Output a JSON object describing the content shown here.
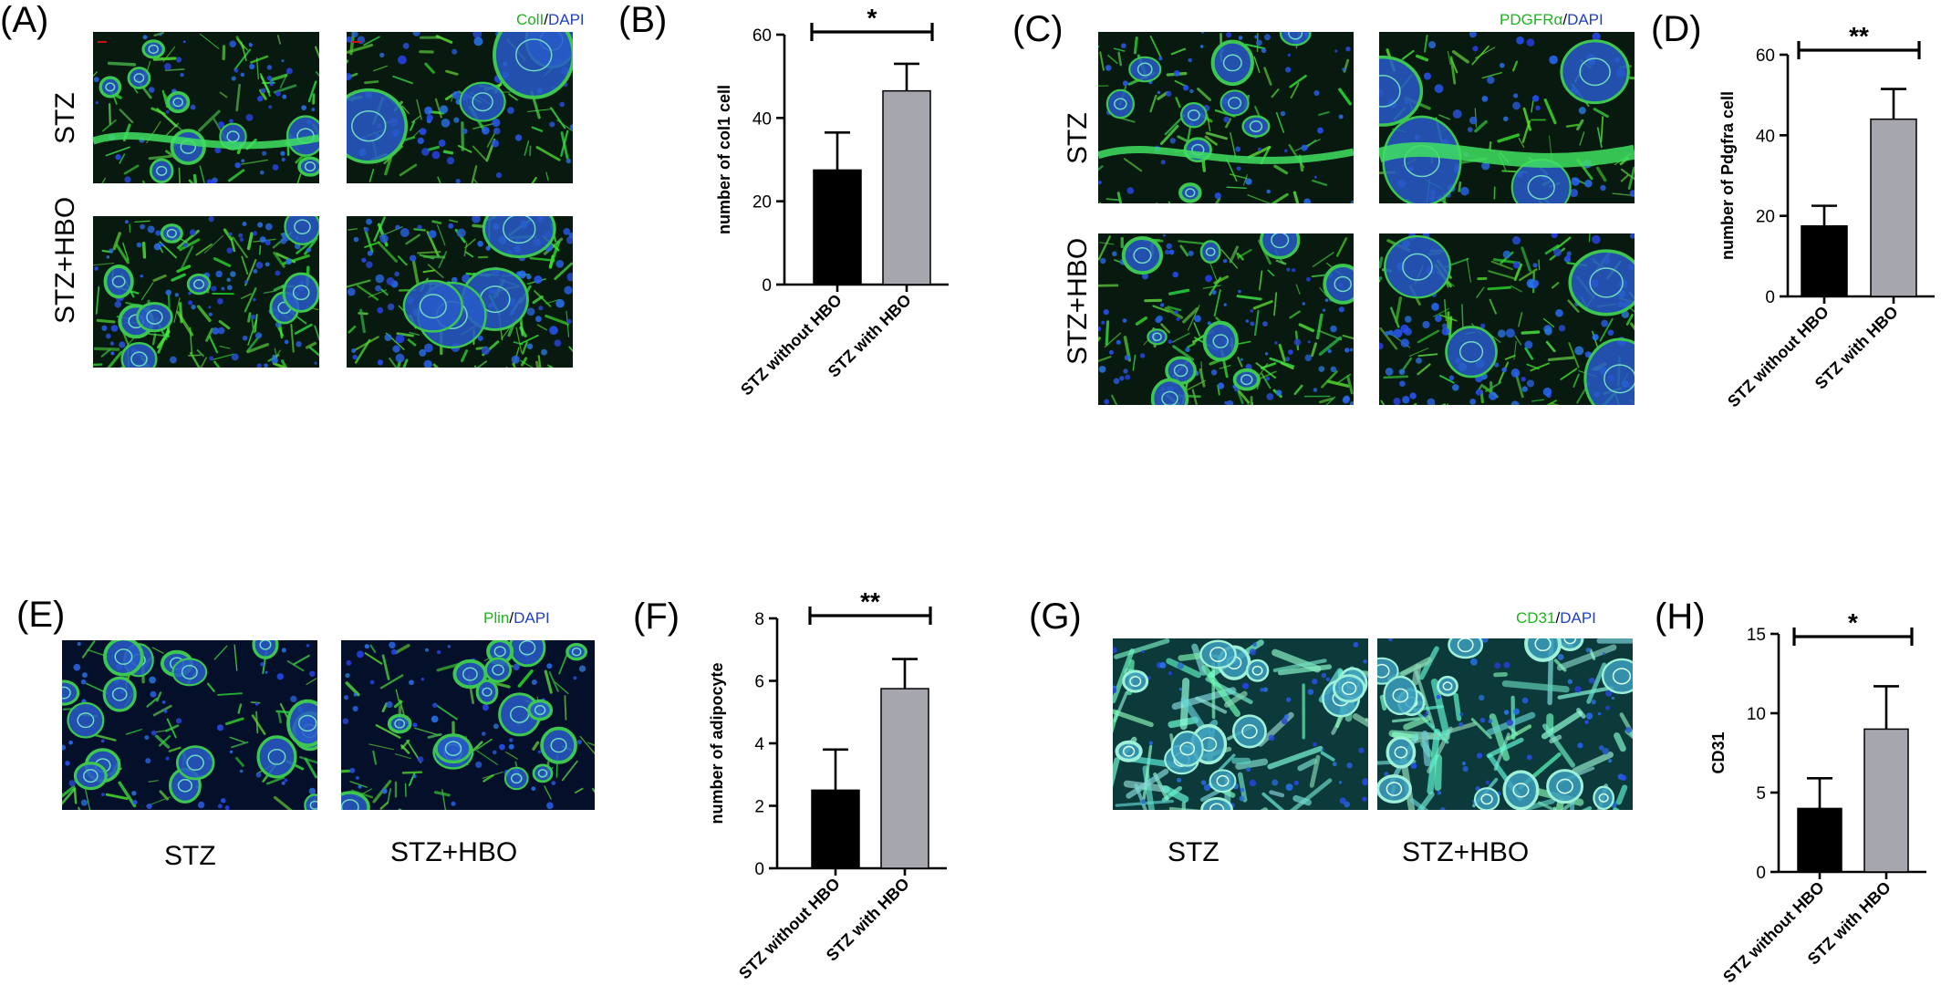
{
  "figure": {
    "panels": {
      "A": {
        "label": "(A)",
        "stain": {
          "green": "ColI",
          "sep": "/",
          "blue": "DAPI"
        },
        "rows": [
          "STZ",
          "STZ+HBO"
        ]
      },
      "B": {
        "label": "(B)"
      },
      "C": {
        "label": "(C)",
        "stain": {
          "green": "PDGFRα",
          "sep": "/",
          "blue": "DAPI"
        },
        "rows": [
          "STZ",
          "STZ+HBO"
        ]
      },
      "D": {
        "label": "(D)"
      },
      "E": {
        "label": "(E)",
        "stain": {
          "green": "Plin",
          "sep": "/",
          "blue": "DAPI"
        },
        "columns": [
          "STZ",
          "STZ+HBO"
        ]
      },
      "F": {
        "label": "(F)"
      },
      "G": {
        "label": "(G)",
        "stain": {
          "green": "CD31",
          "sep": "/",
          "blue": "DAPI"
        },
        "columns": [
          "STZ",
          "STZ+HBO"
        ]
      },
      "H": {
        "label": "(H)"
      }
    },
    "colors": {
      "bar_without": "#000000",
      "bar_with": "#a6a6ae",
      "stain_green": "#1fb31f",
      "stain_blue": "#2040c0",
      "scale_bar": "#d01010"
    }
  },
  "chart_data": [
    {
      "panel": "B",
      "type": "bar",
      "categories": [
        "STZ without HBO",
        "STZ with HBO"
      ],
      "values": [
        27.5,
        46.5
      ],
      "errors": [
        9,
        6.5
      ],
      "ylabel": "number of col1 cell",
      "ylim": [
        0,
        60
      ],
      "yticks": [
        0,
        20,
        40,
        60
      ],
      "significance": "*"
    },
    {
      "panel": "D",
      "type": "bar",
      "categories": [
        "STZ without HBO",
        "STZ with HBO"
      ],
      "values": [
        17.5,
        44
      ],
      "errors": [
        5,
        7.5
      ],
      "ylabel": "number of Pdgfra cell",
      "ylim": [
        0,
        60
      ],
      "yticks": [
        0,
        20,
        40,
        60
      ],
      "significance": "**"
    },
    {
      "panel": "F",
      "type": "bar",
      "categories": [
        "STZ without HBO",
        "STZ with HBO"
      ],
      "values": [
        2.5,
        5.75
      ],
      "errors": [
        1.3,
        0.95
      ],
      "ylabel": "number of adipocyte",
      "ylim": [
        0,
        8
      ],
      "yticks": [
        0,
        2,
        4,
        6,
        8
      ],
      "significance": "**"
    },
    {
      "panel": "H",
      "type": "bar",
      "categories": [
        "STZ without HBO",
        "STZ with HBO"
      ],
      "values": [
        4,
        9
      ],
      "errors": [
        1.9,
        2.7
      ],
      "ylabel": "CD31",
      "ylim": [
        0,
        15
      ],
      "yticks": [
        0,
        5,
        10,
        15
      ],
      "significance": "*"
    }
  ]
}
